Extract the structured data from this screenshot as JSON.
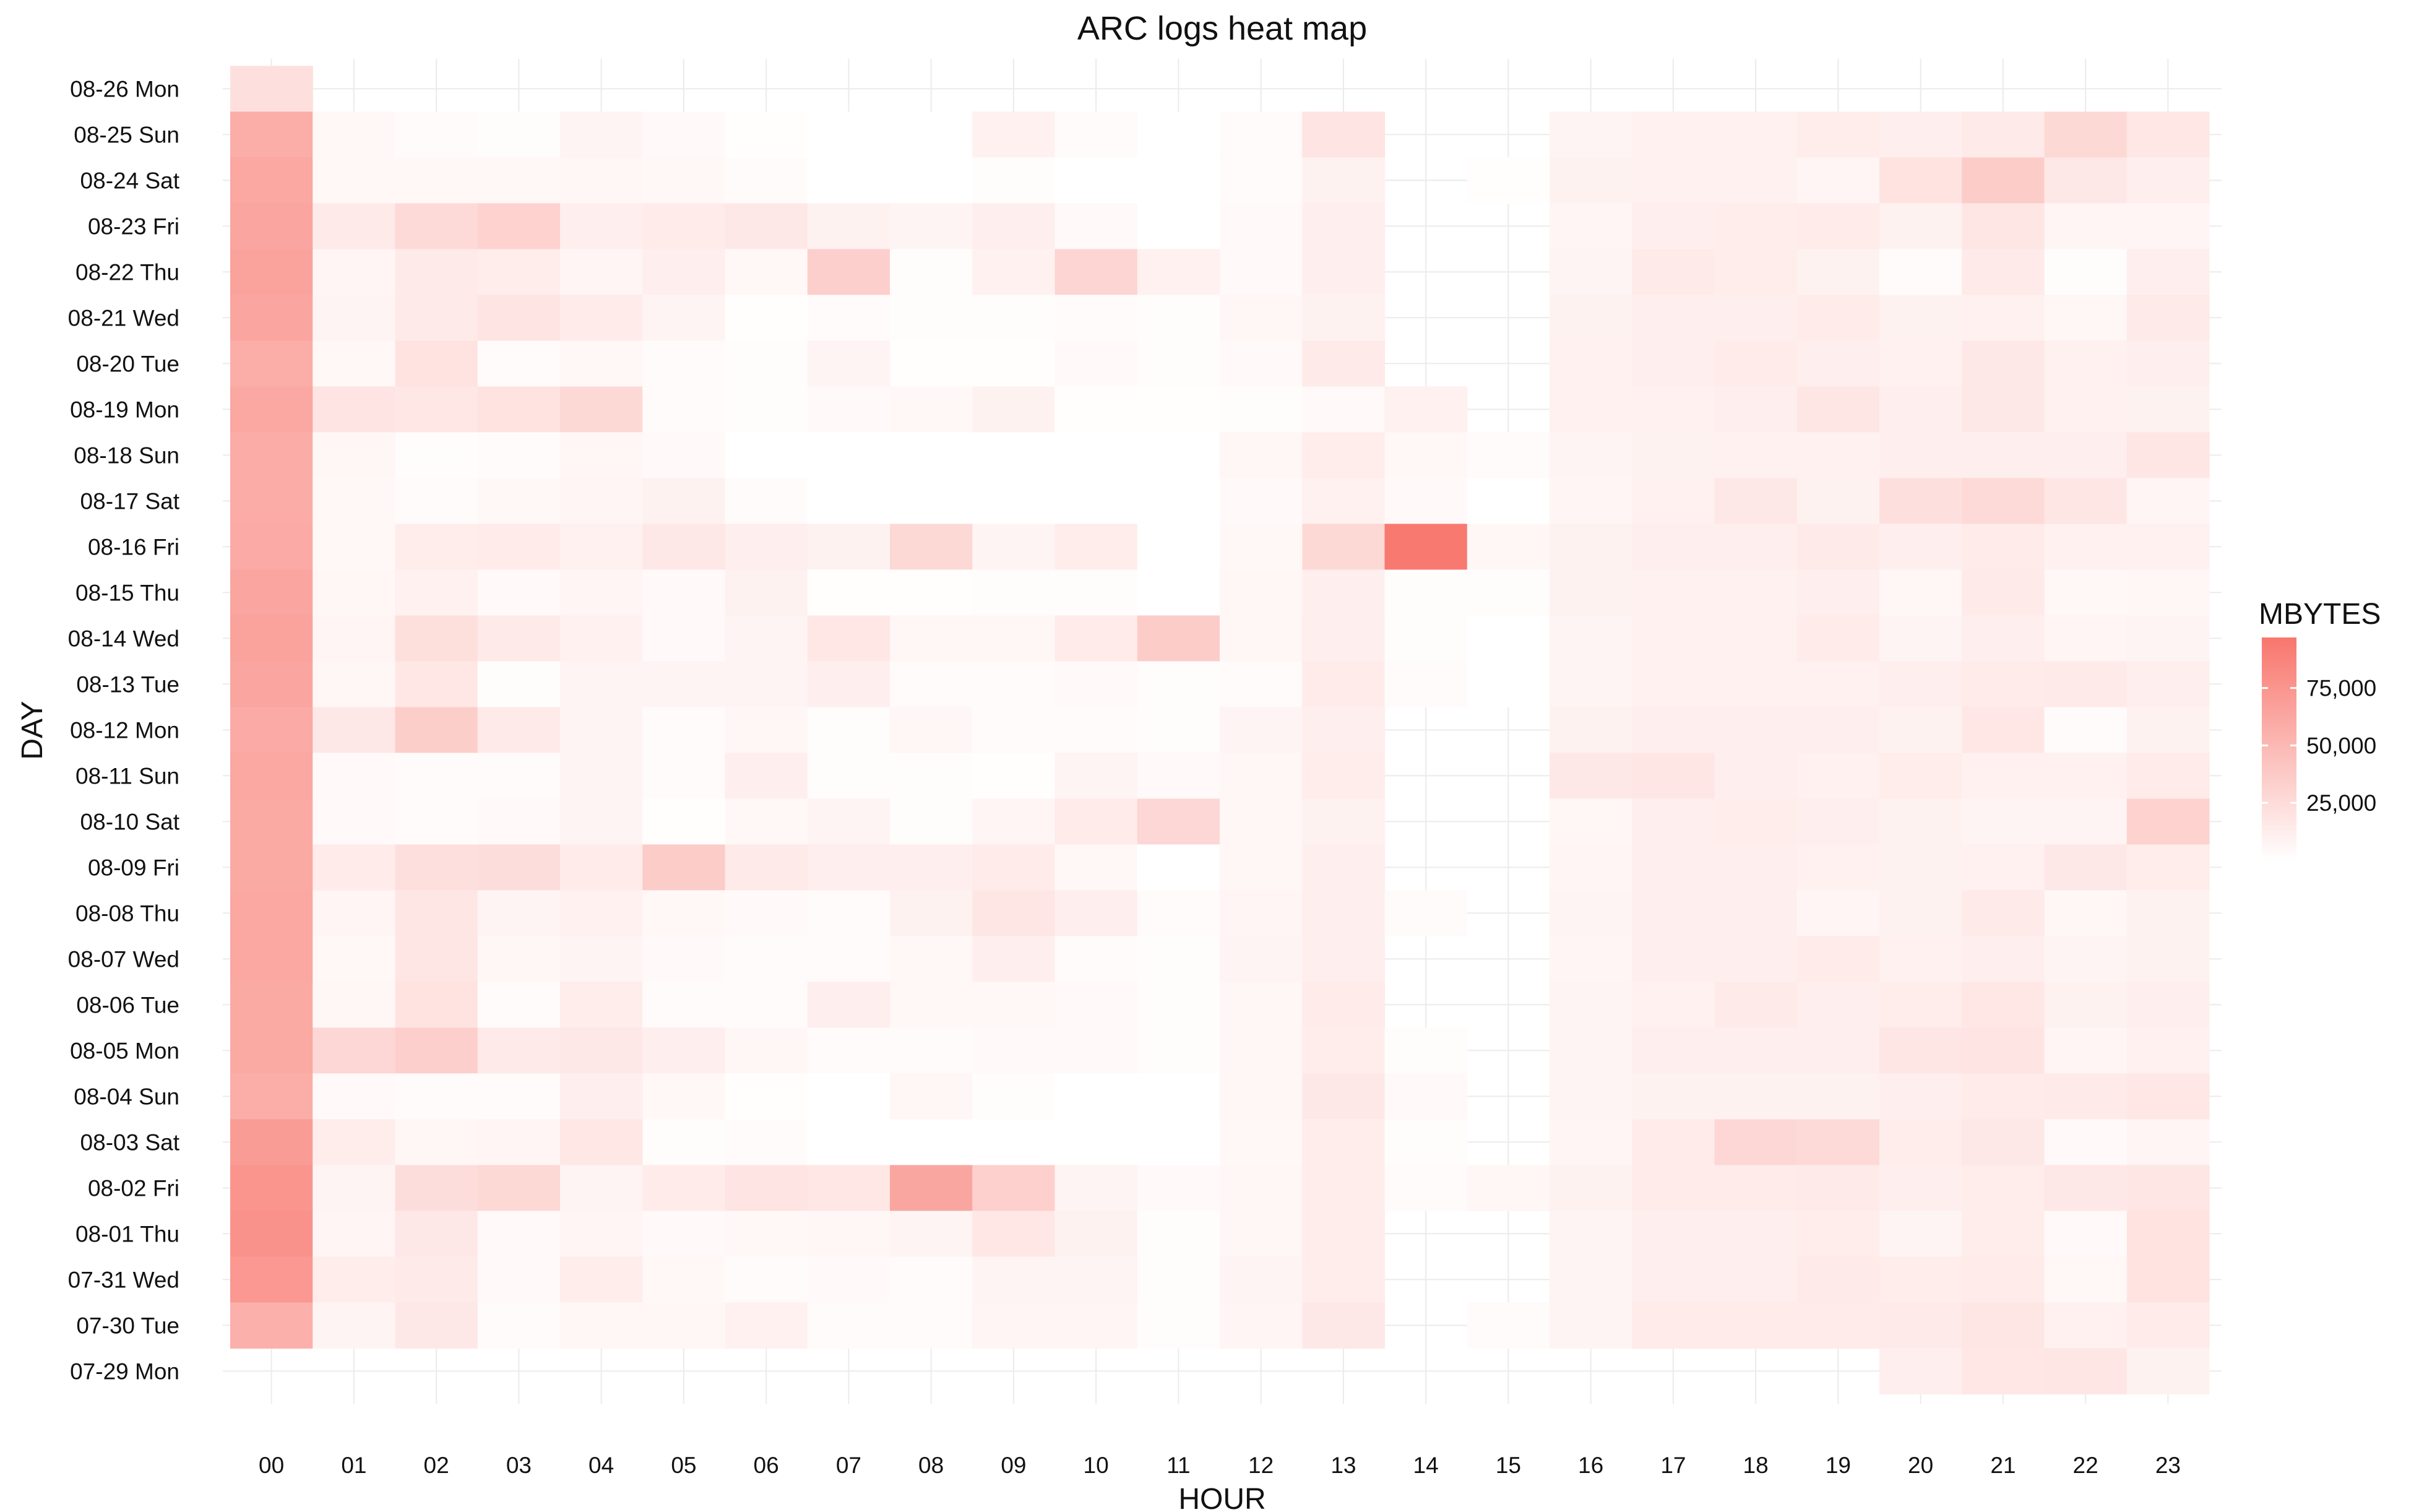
{
  "chart_data": {
    "type": "heatmap",
    "title": "ARC logs heat map",
    "xlabel": "HOUR",
    "ylabel": "DAY",
    "legend": {
      "title": "MBYTES",
      "position": "right",
      "ticks": [
        25000,
        50000,
        75000
      ],
      "tick_labels": [
        "25,000",
        "50,000",
        "75,000"
      ],
      "range": [
        0,
        97000
      ],
      "low_color": "#FFFFFF",
      "high_color": "#F8766D"
    },
    "grid": true,
    "hours": [
      "00",
      "01",
      "02",
      "03",
      "04",
      "05",
      "06",
      "07",
      "08",
      "09",
      "10",
      "11",
      "12",
      "13",
      "14",
      "15",
      "16",
      "17",
      "18",
      "19",
      "20",
      "21",
      "22",
      "23"
    ],
    "days": [
      "08-26 Mon",
      "08-25 Sun",
      "08-24 Sat",
      "08-23 Fri",
      "08-22 Thu",
      "08-21 Wed",
      "08-20 Tue",
      "08-19 Mon",
      "08-18 Sun",
      "08-17 Sat",
      "08-16 Fri",
      "08-15 Thu",
      "08-14 Wed",
      "08-13 Tue",
      "08-12 Mon",
      "08-11 Sun",
      "08-10 Sat",
      "08-09 Fri",
      "08-08 Thu",
      "08-07 Wed",
      "08-06 Tue",
      "08-05 Mon",
      "08-04 Sun",
      "08-03 Sat",
      "08-02 Fri",
      "08-01 Thu",
      "07-31 Wed",
      "07-30 Tue",
      "07-29 Mon"
    ],
    "values": [
      [
        22000,
        null,
        null,
        null,
        null,
        null,
        null,
        null,
        null,
        null,
        null,
        null,
        null,
        null,
        null,
        null,
        null,
        null,
        null,
        null,
        null,
        null,
        null,
        null
      ],
      [
        58000,
        5000,
        3000,
        2000,
        8000,
        4000,
        1000,
        0,
        0,
        10000,
        3000,
        0,
        3000,
        19000,
        null,
        null,
        8000,
        10000,
        10000,
        13000,
        11000,
        15000,
        27000,
        17000
      ],
      [
        62000,
        5000,
        5000,
        5000,
        6000,
        5000,
        3000,
        0,
        0,
        2000,
        0,
        0,
        3000,
        9000,
        null,
        1000,
        9000,
        10000,
        10000,
        7000,
        20000,
        36000,
        16000,
        12000
      ],
      [
        64000,
        15000,
        26000,
        32000,
        12000,
        14000,
        16000,
        9000,
        8000,
        11000,
        4000,
        0,
        4000,
        12000,
        null,
        null,
        7000,
        12000,
        13000,
        14000,
        9000,
        18000,
        7000,
        7000
      ],
      [
        66000,
        7000,
        15000,
        13000,
        7000,
        12000,
        5000,
        34000,
        2000,
        10000,
        30000,
        10000,
        4000,
        11000,
        null,
        null,
        8000,
        15000,
        13000,
        9000,
        3000,
        15000,
        2000,
        11000
      ],
      [
        64000,
        8000,
        15000,
        19000,
        14000,
        8000,
        1000,
        3000,
        2000,
        2000,
        3000,
        2000,
        6000,
        9000,
        null,
        null,
        9000,
        11000,
        12000,
        14000,
        9000,
        10000,
        6000,
        15000
      ],
      [
        58000,
        5000,
        20000,
        3000,
        5000,
        3000,
        2000,
        8000,
        1000,
        1000,
        4000,
        2000,
        4000,
        15000,
        null,
        null,
        10000,
        11000,
        14000,
        11000,
        10000,
        16000,
        10000,
        11000
      ],
      [
        62000,
        19000,
        17000,
        20000,
        27000,
        3000,
        2000,
        4000,
        5000,
        9000,
        1000,
        1000,
        2000,
        4000,
        10000,
        null,
        10000,
        10000,
        11000,
        18000,
        11000,
        16000,
        10000,
        9000
      ],
      [
        59000,
        6000,
        2000,
        3000,
        6000,
        4000,
        0,
        0,
        0,
        0,
        0,
        0,
        6000,
        13000,
        5000,
        3000,
        8000,
        9000,
        10000,
        10000,
        11000,
        12000,
        12000,
        18000
      ],
      [
        59000,
        5000,
        3000,
        5000,
        7000,
        9000,
        3000,
        0,
        0,
        0,
        0,
        0,
        4000,
        10000,
        4000,
        0,
        7000,
        10000,
        16000,
        9000,
        22000,
        26000,
        18000,
        7000
      ],
      [
        60000,
        5000,
        13000,
        14000,
        10000,
        16000,
        12000,
        9000,
        27000,
        8000,
        13000,
        0,
        5000,
        27000,
        95000,
        6000,
        9000,
        12000,
        12000,
        15000,
        11000,
        14000,
        10000,
        10000
      ],
      [
        64000,
        6000,
        10000,
        4000,
        7000,
        4000,
        9000,
        1000,
        1000,
        2000,
        2000,
        0,
        6000,
        11000,
        2000,
        2000,
        9000,
        10000,
        10000,
        11000,
        6000,
        15000,
        5000,
        6000
      ],
      [
        66000,
        7000,
        23000,
        15000,
        10000,
        4000,
        8000,
        17000,
        6000,
        6000,
        14000,
        36000,
        6000,
        12000,
        2000,
        0,
        8000,
        10000,
        10000,
        14000,
        8000,
        11000,
        7000,
        8000
      ],
      [
        64000,
        6000,
        17000,
        2000,
        8000,
        8000,
        8000,
        11000,
        3000,
        3000,
        4000,
        2000,
        3000,
        14000,
        3000,
        0,
        8000,
        10000,
        10000,
        10000,
        12000,
        14000,
        15000,
        11000
      ],
      [
        60000,
        16000,
        35000,
        15000,
        8000,
        3000,
        6000,
        2000,
        6000,
        3000,
        3000,
        2000,
        8000,
        12000,
        null,
        null,
        9000,
        11000,
        12000,
        11000,
        9000,
        17000,
        3000,
        9000
      ],
      [
        62000,
        4000,
        3000,
        3000,
        8000,
        3000,
        11000,
        2000,
        2000,
        1000,
        8000,
        4000,
        6000,
        13000,
        null,
        null,
        16000,
        18000,
        12000,
        10000,
        13000,
        10000,
        10000,
        14000
      ],
      [
        61000,
        4000,
        3000,
        4000,
        8000,
        1000,
        5000,
        8000,
        2000,
        7000,
        14000,
        28000,
        6000,
        9000,
        null,
        null,
        6000,
        12000,
        13000,
        11000,
        9000,
        8000,
        8000,
        32000
      ],
      [
        61000,
        14000,
        22000,
        24000,
        14000,
        36000,
        15000,
        12000,
        11000,
        14000,
        5000,
        0,
        6000,
        11000,
        null,
        null,
        7000,
        12000,
        12000,
        10000,
        9000,
        10000,
        16000,
        13000
      ],
      [
        62000,
        7000,
        18000,
        8000,
        10000,
        5000,
        4000,
        3000,
        9000,
        18000,
        11000,
        3000,
        7000,
        12000,
        3000,
        null,
        8000,
        11000,
        11000,
        7000,
        9000,
        15000,
        6000,
        9000
      ],
      [
        62000,
        5000,
        18000,
        6000,
        8000,
        4000,
        3000,
        3000,
        5000,
        11000,
        3000,
        2000,
        8000,
        11000,
        null,
        null,
        7000,
        11000,
        11000,
        14000,
        10000,
        11000,
        8000,
        9000
      ],
      [
        61000,
        6000,
        20000,
        3000,
        13000,
        3000,
        3000,
        12000,
        5000,
        5000,
        4000,
        2000,
        6000,
        14000,
        null,
        null,
        8000,
        10000,
        15000,
        12000,
        13000,
        17000,
        9000,
        11000
      ],
      [
        61000,
        28000,
        34000,
        15000,
        16000,
        12000,
        6000,
        3000,
        3000,
        4000,
        4000,
        2000,
        6000,
        13000,
        2000,
        null,
        8000,
        11000,
        12000,
        11000,
        18000,
        19000,
        7000,
        10000
      ],
      [
        58000,
        4000,
        3000,
        3000,
        12000,
        5000,
        1000,
        0,
        6000,
        2000,
        0,
        0,
        6000,
        16000,
        4000,
        null,
        8000,
        9000,
        9000,
        9000,
        11000,
        14000,
        15000,
        17000
      ],
      [
        70000,
        13000,
        6000,
        7000,
        17000,
        2000,
        3000,
        0,
        0,
        0,
        0,
        0,
        5000,
        13000,
        2000,
        null,
        7000,
        14000,
        28000,
        26000,
        13000,
        16000,
        4000,
        7000
      ],
      [
        75000,
        8000,
        24000,
        27000,
        8000,
        14000,
        19000,
        17000,
        63000,
        33000,
        8000,
        4000,
        6000,
        13000,
        3000,
        6000,
        9000,
        14000,
        14000,
        15000,
        12000,
        13000,
        16000,
        18000
      ],
      [
        77000,
        7000,
        16000,
        4000,
        7000,
        4000,
        5000,
        6000,
        8000,
        17000,
        9000,
        2000,
        6000,
        13000,
        null,
        null,
        8000,
        12000,
        12000,
        13000,
        8000,
        13000,
        4000,
        20000
      ],
      [
        73000,
        13000,
        15000,
        4000,
        13000,
        5000,
        3000,
        4000,
        3000,
        8000,
        8000,
        2000,
        8000,
        13000,
        null,
        null,
        8000,
        11000,
        12000,
        15000,
        13000,
        14000,
        5000,
        20000
      ],
      [
        56000,
        8000,
        16000,
        3000,
        6000,
        6000,
        10000,
        3000,
        3000,
        7000,
        7000,
        2000,
        7000,
        16000,
        null,
        3000,
        8000,
        14000,
        14000,
        14000,
        15000,
        18000,
        10000,
        14000
      ],
      [
        null,
        null,
        null,
        null,
        null,
        null,
        null,
        null,
        null,
        null,
        null,
        null,
        null,
        null,
        null,
        null,
        null,
        null,
        null,
        null,
        12000,
        17000,
        18000,
        9000
      ]
    ]
  }
}
